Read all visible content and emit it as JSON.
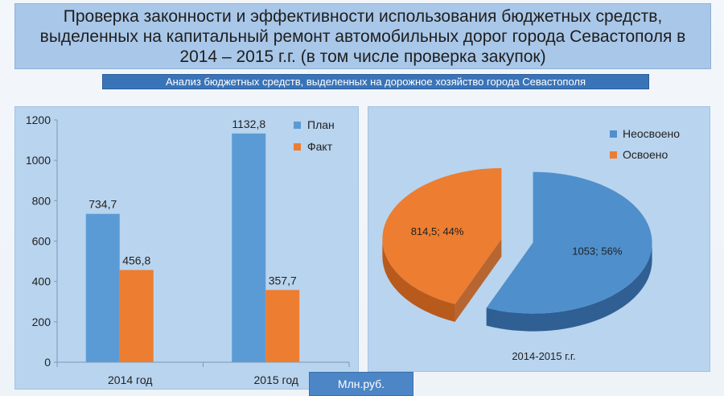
{
  "header": {
    "title": "Проверка законности и эффективности использования бюджетных средств, выделенных на капитальный ремонт автомобильных дорог города Севастополя в 2014 – 2015 г.г. (в том числе проверка закупок)",
    "subtitle": "Анализ бюджетных средств, выделенных на дорожное хозяйство города Севастополя",
    "units": "Млн.руб."
  },
  "colors": {
    "plan": "#5b9bd5",
    "fact": "#ed7d31",
    "panel": "#b9d4ee",
    "title_bg": "#a9c7e8",
    "subtitle_bg": "#3a74b8"
  },
  "chart_data": [
    {
      "type": "bar",
      "categories": [
        "2014 год",
        "2015 год"
      ],
      "series": [
        {
          "name": "План",
          "values": [
            734.7,
            1132.8
          ],
          "labels": [
            "734,7",
            "1132,8"
          ],
          "color": "#5b9bd5"
        },
        {
          "name": "Факт",
          "values": [
            456.8,
            357.7
          ],
          "labels": [
            "456,8",
            "357,7"
          ],
          "color": "#ed7d31"
        }
      ],
      "ylim": [
        0,
        1200
      ],
      "yticks": [
        0,
        200,
        400,
        600,
        800,
        1000,
        1200
      ],
      "grid": false,
      "legend": "top-right"
    },
    {
      "type": "pie",
      "slices": [
        {
          "name": "Неосвоено",
          "value": 1053,
          "label": "1053; 56%",
          "color": "#4f8fcc"
        },
        {
          "name": "Освоено",
          "value": 814.5,
          "label": "814,5; 44%",
          "color": "#ed7d31"
        }
      ],
      "xlabel": "2014-2015 г.г.",
      "legend": "top-right",
      "exploded": true,
      "three_d": true
    }
  ]
}
